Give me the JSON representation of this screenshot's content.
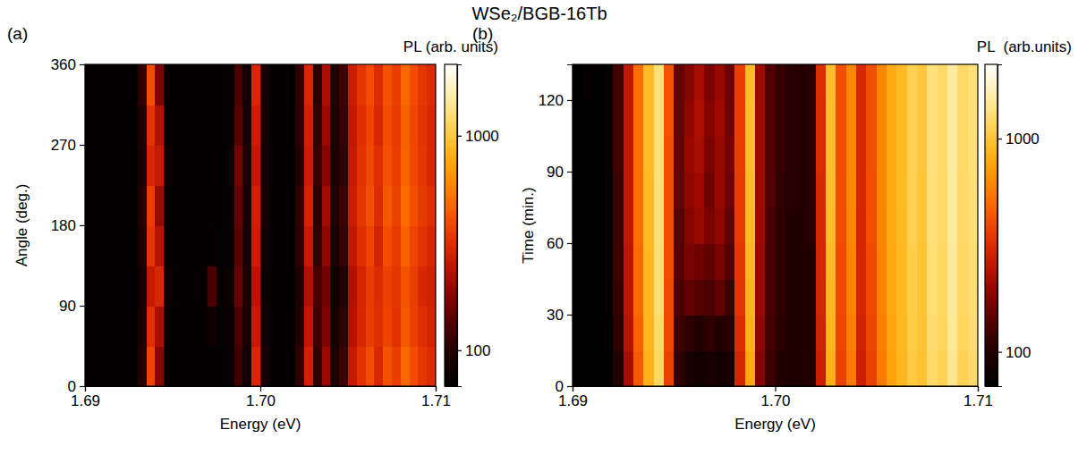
{
  "title": "WSe₂/BGB-16Tb",
  "chart_data": [
    {
      "type": "heatmap",
      "label": "(a)",
      "x_label": "Energy (eV)",
      "y_label": "Angle (deg.)",
      "xlim": [
        1.69,
        1.71
      ],
      "xticks": [
        1.69,
        {
          "value": 1.7,
          "label": "1.70"
        },
        1.71
      ],
      "ylim": [
        0,
        360
      ],
      "yticks": [
        0,
        90,
        180,
        270,
        360
      ],
      "x_edges": [
        1.69,
        1.6905,
        1.691,
        1.6915,
        1.692,
        1.6925,
        1.693,
        1.6935,
        1.694,
        1.6945,
        1.695,
        1.6955,
        1.696,
        1.6965,
        1.697,
        1.6975,
        1.698,
        1.6985,
        1.699,
        1.6995,
        1.7,
        1.7005,
        1.701,
        1.7015,
        1.702,
        1.7025,
        1.703,
        1.7035,
        1.704,
        1.7045,
        1.705,
        1.7055,
        1.706,
        1.7065,
        1.707,
        1.7075,
        1.708,
        1.7085,
        1.709,
        1.7095,
        1.71
      ],
      "y_edges": [
        0,
        45,
        90,
        135,
        180,
        225,
        270,
        315,
        360
      ],
      "values": [
        [
          70,
          70,
          70,
          70,
          70,
          70,
          100,
          380,
          180,
          75,
          70,
          70,
          70,
          70,
          70,
          70,
          75,
          120,
          85,
          300,
          90,
          70,
          70,
          70,
          110,
          280,
          110,
          200,
          90,
          120,
          260,
          330,
          400,
          300,
          420,
          360,
          480,
          400,
          340,
          310
        ],
        [
          70,
          70,
          70,
          70,
          70,
          70,
          90,
          320,
          220,
          75,
          70,
          70,
          70,
          70,
          80,
          70,
          75,
          130,
          90,
          260,
          85,
          70,
          70,
          70,
          100,
          250,
          120,
          170,
          85,
          110,
          240,
          300,
          360,
          320,
          380,
          330,
          430,
          370,
          320,
          290
        ],
        [
          70,
          70,
          70,
          70,
          70,
          70,
          85,
          260,
          300,
          80,
          70,
          70,
          70,
          75,
          130,
          75,
          80,
          150,
          95,
          240,
          80,
          70,
          70,
          70,
          95,
          230,
          130,
          160,
          80,
          100,
          230,
          290,
          350,
          310,
          370,
          340,
          420,
          360,
          300,
          280
        ],
        [
          70,
          70,
          70,
          70,
          70,
          70,
          95,
          340,
          240,
          75,
          70,
          70,
          70,
          70,
          75,
          70,
          75,
          140,
          90,
          270,
          85,
          70,
          70,
          70,
          105,
          260,
          110,
          190,
          90,
          115,
          250,
          320,
          380,
          290,
          400,
          350,
          460,
          380,
          330,
          300
        ],
        [
          70,
          70,
          70,
          70,
          70,
          70,
          100,
          360,
          200,
          75,
          70,
          70,
          70,
          70,
          70,
          70,
          75,
          150,
          90,
          280,
          90,
          70,
          70,
          70,
          110,
          290,
          105,
          210,
          95,
          120,
          270,
          340,
          410,
          310,
          430,
          370,
          490,
          410,
          350,
          320
        ],
        [
          70,
          70,
          70,
          70,
          70,
          70,
          90,
          300,
          260,
          80,
          70,
          70,
          70,
          70,
          70,
          70,
          80,
          160,
          95,
          250,
          85,
          70,
          70,
          70,
          100,
          270,
          115,
          180,
          90,
          110,
          260,
          330,
          390,
          320,
          410,
          360,
          470,
          390,
          340,
          300
        ],
        [
          70,
          70,
          70,
          70,
          70,
          70,
          95,
          330,
          230,
          75,
          70,
          70,
          70,
          70,
          70,
          70,
          75,
          140,
          90,
          270,
          90,
          70,
          70,
          70,
          105,
          280,
          110,
          200,
          90,
          115,
          255,
          320,
          380,
          300,
          400,
          350,
          460,
          390,
          330,
          300
        ],
        [
          70,
          70,
          70,
          70,
          70,
          70,
          110,
          400,
          170,
          75,
          70,
          70,
          70,
          70,
          70,
          70,
          75,
          130,
          85,
          300,
          90,
          70,
          70,
          70,
          110,
          300,
          105,
          220,
          95,
          120,
          270,
          340,
          400,
          310,
          420,
          360,
          480,
          400,
          340,
          310
        ]
      ],
      "colorbar": {
        "title": "PL (arb. units)",
        "range": [
          68,
          2150
        ],
        "ticks": [
          100,
          1000
        ],
        "log": true
      }
    },
    {
      "type": "heatmap",
      "label": "(b)",
      "x_label": "Energy (eV)",
      "y_label": "Time (min.)",
      "xlim": [
        1.69,
        1.71
      ],
      "xticks": [
        1.69,
        {
          "value": 1.7,
          "label": "1.70"
        },
        1.71
      ],
      "ylim": [
        0,
        135
      ],
      "yticks": [
        0,
        30,
        60,
        90,
        120
      ],
      "x_edges": [
        1.69,
        1.6905,
        1.691,
        1.6915,
        1.692,
        1.6925,
        1.693,
        1.6935,
        1.694,
        1.6945,
        1.695,
        1.6955,
        1.696,
        1.6965,
        1.697,
        1.6975,
        1.698,
        1.6985,
        1.699,
        1.6995,
        1.7,
        1.7005,
        1.701,
        1.7015,
        1.702,
        1.7025,
        1.703,
        1.7035,
        1.704,
        1.7045,
        1.705,
        1.7055,
        1.706,
        1.7065,
        1.707,
        1.7075,
        1.708,
        1.7085,
        1.709,
        1.7095,
        1.71
      ],
      "y_edges": [
        0,
        15,
        30,
        45,
        60,
        75,
        90,
        105,
        120,
        135
      ],
      "values": [
        [
          70,
          70,
          70,
          70,
          100,
          220,
          450,
          850,
          1200,
          380,
          110,
          90,
          85,
          90,
          85,
          90,
          300,
          800,
          180,
          120,
          100,
          95,
          95,
          100,
          280,
          850,
          380,
          560,
          280,
          380,
          560,
          760,
          880,
          1050,
          980,
          1250,
          1150,
          1450,
          1150,
          1250
        ],
        [
          70,
          70,
          70,
          70,
          110,
          240,
          480,
          880,
          1250,
          400,
          120,
          110,
          100,
          110,
          100,
          105,
          320,
          850,
          190,
          125,
          105,
          100,
          100,
          100,
          290,
          880,
          390,
          580,
          290,
          390,
          580,
          780,
          900,
          1080,
          1000,
          1280,
          1180,
          1480,
          1180,
          1280
        ],
        [
          70,
          70,
          70,
          75,
          115,
          250,
          500,
          900,
          1300,
          400,
          130,
          150,
          140,
          130,
          150,
          120,
          340,
          880,
          200,
          130,
          110,
          100,
          100,
          100,
          300,
          900,
          400,
          600,
          300,
          400,
          600,
          800,
          900,
          1100,
          1000,
          1300,
          1200,
          1500,
          1200,
          1300
        ],
        [
          70,
          70,
          70,
          75,
          120,
          250,
          500,
          900,
          1300,
          410,
          140,
          170,
          160,
          150,
          170,
          140,
          350,
          900,
          200,
          130,
          110,
          100,
          100,
          100,
          300,
          920,
          400,
          600,
          300,
          400,
          600,
          800,
          900,
          1100,
          1000,
          1300,
          1200,
          1500,
          1200,
          1300
        ],
        [
          70,
          70,
          70,
          75,
          120,
          260,
          520,
          920,
          1320,
          420,
          140,
          180,
          200,
          170,
          190,
          150,
          360,
          920,
          210,
          130,
          110,
          100,
          100,
          105,
          310,
          940,
          410,
          610,
          300,
          410,
          610,
          810,
          910,
          1120,
          1020,
          1320,
          1220,
          1520,
          1220,
          1320
        ],
        [
          70,
          70,
          70,
          75,
          120,
          260,
          520,
          920,
          1320,
          420,
          150,
          190,
          210,
          160,
          200,
          160,
          360,
          930,
          210,
          135,
          110,
          105,
          100,
          105,
          310,
          950,
          410,
          620,
          310,
          410,
          620,
          820,
          920,
          1120,
          1020,
          1320,
          1220,
          1520,
          1220,
          1320
        ],
        [
          70,
          70,
          70,
          75,
          125,
          260,
          520,
          930,
          1330,
          420,
          150,
          200,
          220,
          170,
          200,
          170,
          370,
          950,
          210,
          135,
          115,
          105,
          100,
          105,
          320,
          960,
          420,
          620,
          310,
          420,
          620,
          820,
          920,
          1130,
          1030,
          1330,
          1230,
          1530,
          1230,
          1330
        ],
        [
          70,
          70,
          70,
          75,
          125,
          260,
          520,
          930,
          1330,
          430,
          150,
          190,
          230,
          180,
          210,
          160,
          370,
          950,
          210,
          135,
          115,
          105,
          100,
          105,
          320,
          960,
          420,
          620,
          310,
          420,
          620,
          820,
          920,
          1130,
          1030,
          1330,
          1230,
          1530,
          1230,
          1330
        ],
        [
          70,
          75,
          70,
          75,
          125,
          260,
          520,
          930,
          1330,
          430,
          150,
          180,
          220,
          170,
          200,
          160,
          370,
          940,
          210,
          135,
          115,
          105,
          100,
          105,
          320,
          950,
          420,
          620,
          310,
          420,
          620,
          820,
          920,
          1130,
          1030,
          1330,
          1230,
          1530,
          1230,
          1330
        ]
      ],
      "colorbar": {
        "title": "PL  (arb.units)",
        "range": [
          69,
          2230
        ],
        "ticks": [
          100,
          1000
        ],
        "log": true
      }
    }
  ]
}
